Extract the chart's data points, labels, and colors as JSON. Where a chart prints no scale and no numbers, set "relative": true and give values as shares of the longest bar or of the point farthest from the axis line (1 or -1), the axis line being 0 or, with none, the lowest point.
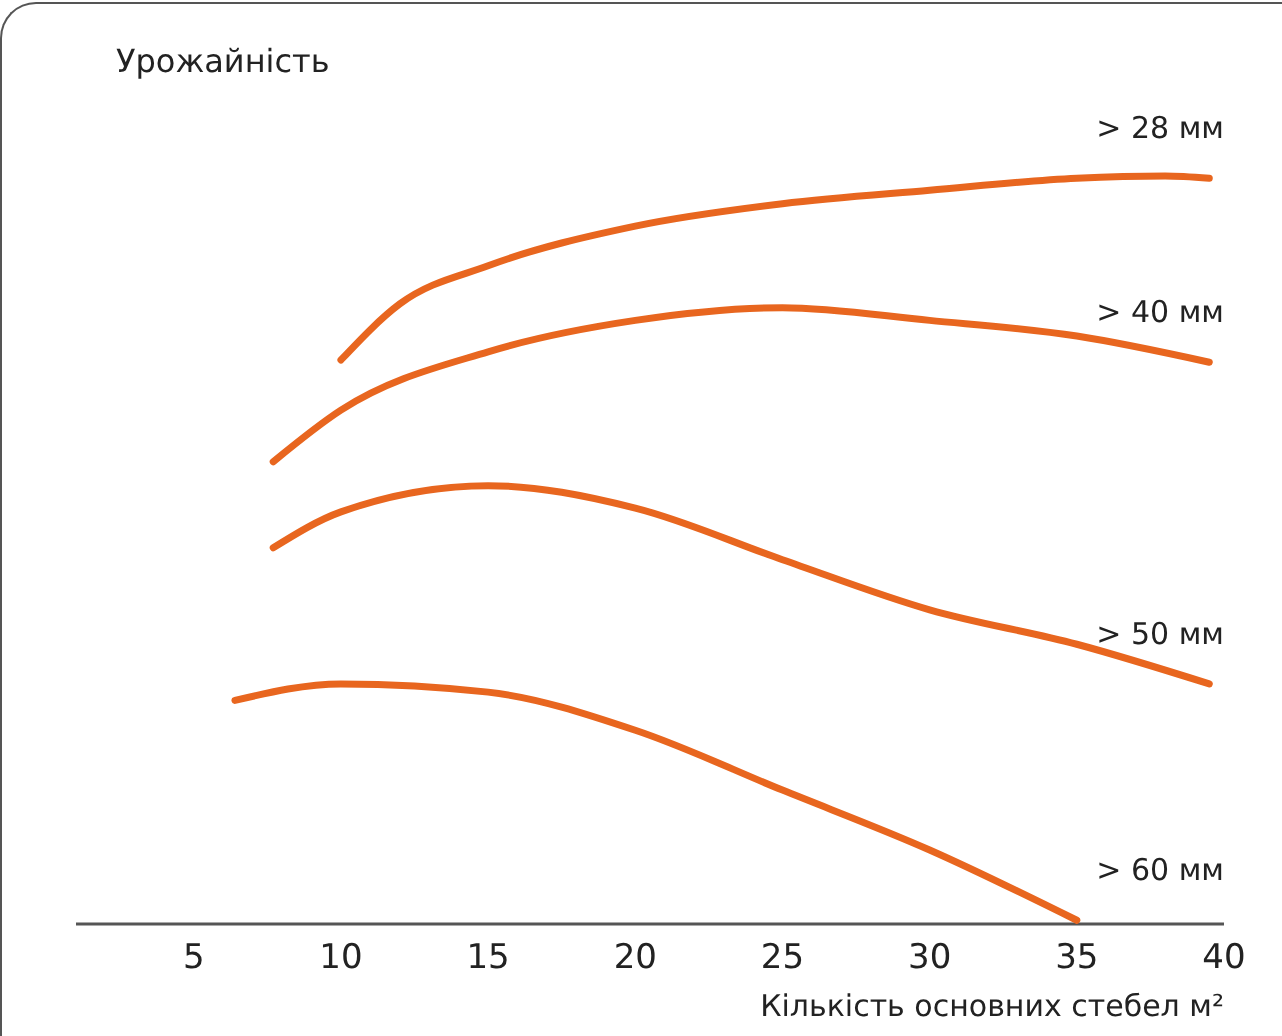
{
  "chart_data": {
    "type": "line",
    "relative": true,
    "ylabel": "Урожайність",
    "xlabel": "Кількість основних стебел м²",
    "xlim": [
      1,
      40
    ],
    "xticks": [
      5,
      10,
      15,
      20,
      25,
      30,
      35,
      40
    ],
    "grid": false,
    "marker": "none",
    "line_style": "solid",
    "series": [
      {
        "name": "> 28 мм",
        "color": "#e8661f",
        "x": [
          10,
          12,
          15,
          20,
          25,
          30,
          35,
          38,
          39.5
        ],
        "values": [
          0.754,
          0.829,
          0.88,
          0.933,
          0.963,
          0.981,
          0.997,
          1,
          0.997
        ]
      },
      {
        "name": "> 40 мм",
        "color": "#e8661f",
        "x": [
          7.7,
          10,
          15,
          20,
          25,
          30,
          35,
          39.5
        ],
        "values": [
          0.618,
          0.687,
          0.765,
          0.807,
          0.824,
          0.807,
          0.786,
          0.751
        ]
      },
      {
        "name": "> 50 мм",
        "color": "#e8661f",
        "x": [
          7.7,
          10,
          15,
          20,
          25,
          30,
          35,
          39.5
        ],
        "values": [
          0.503,
          0.551,
          0.586,
          0.556,
          0.487,
          0.42,
          0.374,
          0.321
        ]
      },
      {
        "name": "> 60 мм",
        "color": "#e8661f",
        "x": [
          6.4,
          10,
          15,
          20,
          25,
          30,
          35
        ],
        "values": [
          0.299,
          0.321,
          0.31,
          0.259,
          0.179,
          0.099,
          0.005
        ]
      }
    ]
  }
}
